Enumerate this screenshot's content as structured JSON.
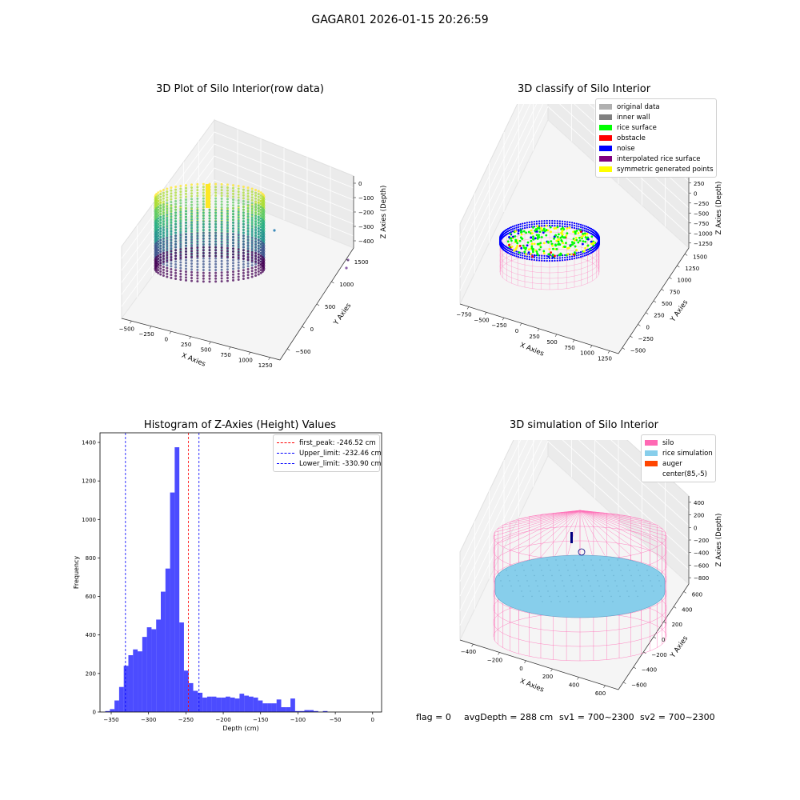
{
  "suptitle": "GAGAR01 2026-01-15 20:26:59",
  "panels": {
    "raw": {
      "title": "3D Plot of Silo Interior(row data)",
      "xlabel": "X Axies",
      "ylabel": "Y Axies",
      "zlabel": "Z Axies (Depth)",
      "xticks": [
        "−500",
        "−250",
        "0",
        "250",
        "500",
        "750",
        "1000",
        "1250"
      ],
      "yticks": [
        "−500",
        "0",
        "500",
        "1000",
        "1500"
      ],
      "zticks": [
        "−400",
        "−300",
        "−200",
        "−100",
        "0"
      ]
    },
    "classify": {
      "title": "3D classify of Silo Interior",
      "xlabel": "X Axies",
      "ylabel": "Y Axies",
      "zlabel": "Z Axies (Depth)",
      "xticks": [
        "−750",
        "−500",
        "−250",
        "0",
        "250",
        "500",
        "750",
        "1000",
        "1250"
      ],
      "yticks": [
        "−500",
        "−250",
        "0",
        "250",
        "500",
        "750",
        "1000",
        "1250",
        "1500"
      ],
      "zticks": [
        "−1250",
        "−1000",
        "−750",
        "−500",
        "−250",
        "0",
        "250",
        "500"
      ],
      "legend": [
        {
          "label": "original data",
          "color": "#b0b0b0"
        },
        {
          "label": "inner wall",
          "color": "#808080"
        },
        {
          "label": "rice surface",
          "color": "#00ff00"
        },
        {
          "label": "obstacle",
          "color": "#ff0000"
        },
        {
          "label": "noise",
          "color": "#0000ff"
        },
        {
          "label": "interpolated rice surface",
          "color": "#800080"
        },
        {
          "label": "symmetric generated points",
          "color": "#ffff00"
        }
      ]
    },
    "simulation": {
      "title": "3D simulation of Silo Interior",
      "xlabel": "X Axies",
      "ylabel": "Y Axies",
      "zlabel": "Z Axies (Depth)",
      "xticks": [
        "−400",
        "−200",
        "0",
        "200",
        "400",
        "600"
      ],
      "yticks": [
        "−600",
        "−400",
        "−200",
        "0",
        "200",
        "400",
        "600"
      ],
      "zticks": [
        "−800",
        "−600",
        "−400",
        "−200",
        "0",
        "200",
        "400"
      ],
      "legend": [
        {
          "label": "silo",
          "color": "#ff69b4"
        },
        {
          "label": "rice simulation",
          "color": "#87ceeb"
        },
        {
          "label": "auger",
          "color": "#ff4500"
        },
        {
          "label": "center(85,-5)",
          "color": "#ffffff"
        }
      ]
    }
  },
  "footer": {
    "flag": "flag = 0",
    "avg": "avgDepth = 288 cm",
    "sv1": "sv1 = 700~2300",
    "sv2": "sv2 = 700~2300"
  },
  "chart_data": {
    "type": "bar",
    "title": "Histogram of Z-Axies (Height) Values",
    "xlabel": "Depth (cm)",
    "ylabel": "Frequency",
    "xlim": [
      -365,
      12
    ],
    "ylim": [
      0,
      1450
    ],
    "xticks": [
      -350,
      -300,
      -250,
      -200,
      -150,
      -100,
      -50,
      0
    ],
    "yticks": [
      0,
      200,
      400,
      600,
      800,
      1000,
      1200,
      1400
    ],
    "bin_start": -358,
    "bin_width": 6.2,
    "values": [
      5,
      15,
      60,
      130,
      240,
      295,
      325,
      315,
      390,
      440,
      430,
      480,
      625,
      745,
      1140,
      1375,
      465,
      215,
      150,
      110,
      100,
      75,
      80,
      80,
      75,
      75,
      80,
      75,
      70,
      95,
      85,
      80,
      75,
      60,
      45,
      45,
      45,
      65,
      25,
      25,
      70,
      5,
      5,
      10,
      10,
      5,
      0,
      5
    ],
    "bar_color": "#0000ff",
    "lines": [
      {
        "label": "first_peak: -246.52 cm",
        "x": -246.52,
        "color": "#ff0000"
      },
      {
        "label": "Upper_limit: -232.46 cm",
        "x": -232.46,
        "color": "#0000ff"
      },
      {
        "label": "Lower_limit: -330.90 cm",
        "x": -330.9,
        "color": "#0000ff"
      }
    ],
    "legend_position": "upper right"
  }
}
